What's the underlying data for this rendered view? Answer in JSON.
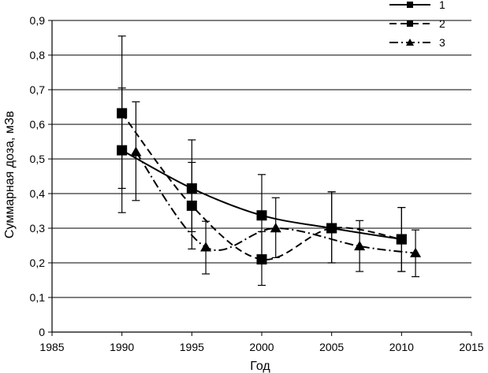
{
  "chart_data": {
    "type": "line",
    "xlabel": "Год",
    "ylabel": "Суммарная доза, мЗв",
    "xlim": [
      1985,
      2015
    ],
    "ylim": [
      0,
      0.9
    ],
    "x_ticks": [
      1985,
      1990,
      1995,
      2000,
      2005,
      2010,
      2015
    ],
    "y_ticks": [
      0,
      0.1,
      0.2,
      0.3,
      0.4,
      0.5,
      0.6,
      0.7,
      0.8,
      0.9
    ],
    "y_tick_labels": [
      "0",
      "0,1",
      "0,2",
      "0,3",
      "0,4",
      "0,5",
      "0,6",
      "0,7",
      "0,8",
      "0,9"
    ],
    "x_tick_labels": [
      "1985",
      "1990",
      "1995",
      "2000",
      "2005",
      "2010",
      "2015"
    ],
    "grid": "horizontal",
    "legend_position": "top-right",
    "series": [
      {
        "name": "1",
        "marker": "square",
        "line_style": "solid",
        "x": [
          1990,
          1995,
          2000,
          2005,
          2010
        ],
        "y": [
          0.525,
          0.415,
          0.337,
          0.3,
          0.268
        ],
        "err_low": [
          0.345,
          0.29,
          0.215,
          0.2,
          0.175
        ],
        "err_high": [
          0.705,
          0.555,
          0.455,
          0.405,
          0.36
        ]
      },
      {
        "name": "2",
        "marker": "square",
        "line_style": "dashed",
        "x": [
          1990,
          1995,
          2000,
          2005,
          2010
        ],
        "y": [
          0.632,
          0.365,
          0.21,
          0.3,
          0.268
        ],
        "err_low": [
          0.415,
          0.24,
          0.135,
          0.2,
          0.175
        ],
        "err_high": [
          0.855,
          0.49,
          0.29,
          0.405,
          0.36
        ]
      },
      {
        "name": "3",
        "marker": "triangle",
        "line_style": "dash-dot",
        "x": [
          1991,
          1996,
          2001,
          2007,
          2011
        ],
        "y": [
          0.52,
          0.245,
          0.3,
          0.248,
          0.228
        ],
        "err_low": [
          0.38,
          0.168,
          0.215,
          0.175,
          0.16
        ],
        "err_high": [
          0.665,
          0.32,
          0.388,
          0.322,
          0.295
        ]
      }
    ]
  }
}
